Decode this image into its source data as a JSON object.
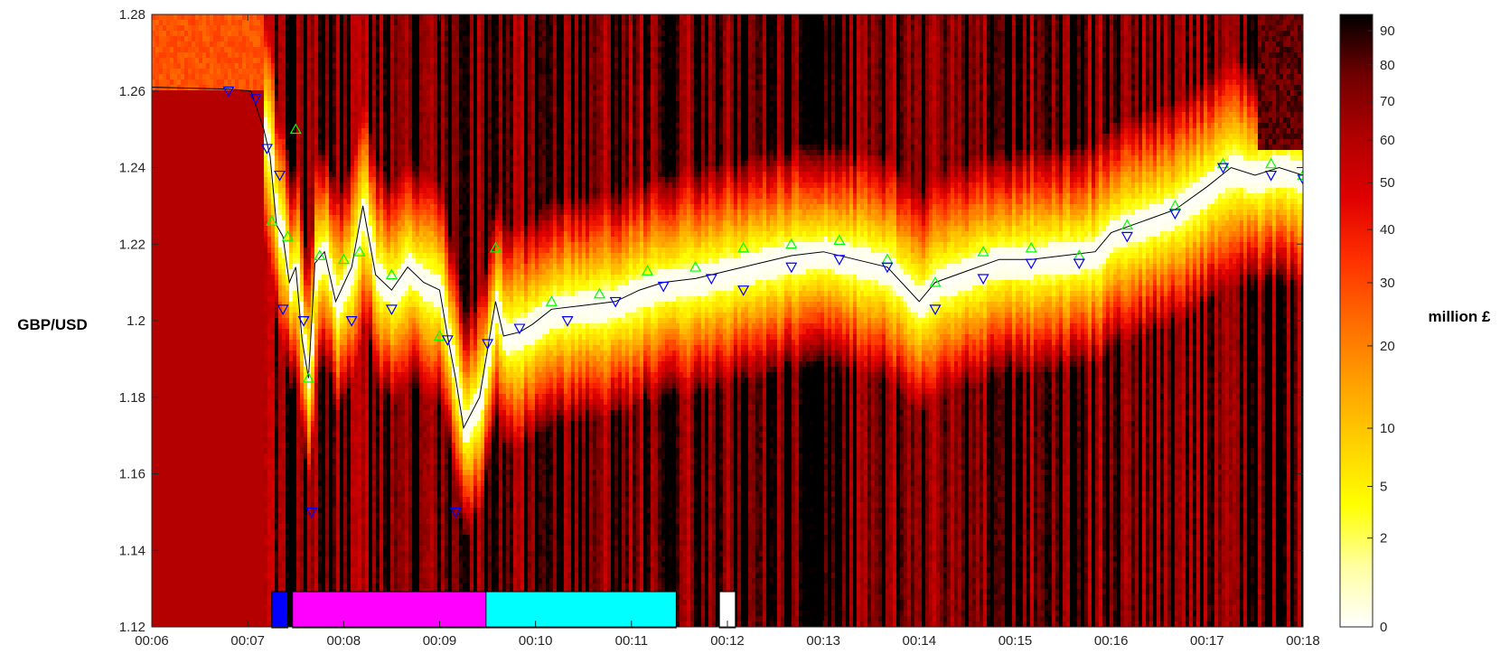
{
  "chart_data": {
    "type": "heatmap",
    "title": "",
    "xlabel": "",
    "ylabel": "GBP/USD",
    "colorbar_label": "million £",
    "x_ticks": [
      "00:06",
      "00:07",
      "00:08",
      "00:09",
      "00:10",
      "00:11",
      "00:12",
      "00:13",
      "00:14",
      "00:15",
      "00:16",
      "00:17",
      "00:18"
    ],
    "xlim": [
      "00:06",
      "00:18"
    ],
    "ylim": [
      1.12,
      1.28
    ],
    "y_ticks": [
      "1.12",
      "1.14",
      "1.16",
      "1.18",
      "1.2",
      "1.22",
      "1.24",
      "1.26",
      "1.28"
    ],
    "colorbar_ticks": [
      "0",
      "2",
      "5",
      "10",
      "20",
      "30",
      "40",
      "50",
      "60",
      "70",
      "80",
      "90"
    ],
    "colorbar_range": [
      0,
      95
    ],
    "colormap": [
      "#ffffff",
      "#ffffa0",
      "#ffff00",
      "#ffd000",
      "#ff9f00",
      "#ff6a00",
      "#ff3000",
      "#e00000",
      "#b00000",
      "#700000",
      "#000000"
    ],
    "price_series": {
      "name": "",
      "color": "#000000",
      "points": [
        [
          "00:06",
          1.261
        ],
        [
          "00:06:48",
          1.2605
        ],
        [
          "00:07:02",
          1.26
        ],
        [
          "00:07:10",
          1.25
        ],
        [
          "00:07:14",
          1.243
        ],
        [
          "00:07:18",
          1.225
        ],
        [
          "00:07:22",
          1.222
        ],
        [
          "00:07:26",
          1.21
        ],
        [
          "00:07:30",
          1.214
        ],
        [
          "00:07:34",
          1.195
        ],
        [
          "00:07:38",
          1.185
        ],
        [
          "00:07:42",
          1.215
        ],
        [
          "00:07:48",
          1.218
        ],
        [
          "00:07:55",
          1.205
        ],
        [
          "00:08:05",
          1.214
        ],
        [
          "00:08:12",
          1.23
        ],
        [
          "00:08:20",
          1.212
        ],
        [
          "00:08:30",
          1.208
        ],
        [
          "00:08:40",
          1.214
        ],
        [
          "00:08:50",
          1.21
        ],
        [
          "00:09:00",
          1.208
        ],
        [
          "00:09:05",
          1.196
        ],
        [
          "00:09:10",
          1.185
        ],
        [
          "00:09:15",
          1.172
        ],
        [
          "00:09:25",
          1.18
        ],
        [
          "00:09:35",
          1.205
        ],
        [
          "00:09:40",
          1.196
        ],
        [
          "00:09:50",
          1.197
        ],
        [
          "00:09:58",
          1.199
        ],
        [
          "00:10:10",
          1.203
        ],
        [
          "00:10:30",
          1.204
        ],
        [
          "00:10:50",
          1.205
        ],
        [
          "00:11:05",
          1.208
        ],
        [
          "00:11:20",
          1.21
        ],
        [
          "00:11:40",
          1.211
        ],
        [
          "00:12:00",
          1.213
        ],
        [
          "00:12:20",
          1.215
        ],
        [
          "00:12:40",
          1.217
        ],
        [
          "00:13:00",
          1.218
        ],
        [
          "00:13:20",
          1.216
        ],
        [
          "00:13:40",
          1.214
        ],
        [
          "00:14:00",
          1.205
        ],
        [
          "00:14:10",
          1.21
        ],
        [
          "00:14:30",
          1.213
        ],
        [
          "00:14:50",
          1.216
        ],
        [
          "00:15:10",
          1.216
        ],
        [
          "00:15:30",
          1.217
        ],
        [
          "00:15:50",
          1.218
        ],
        [
          "00:16:00",
          1.223
        ],
        [
          "00:16:20",
          1.226
        ],
        [
          "00:16:40",
          1.229
        ],
        [
          "00:17:00",
          1.235
        ],
        [
          "00:17:15",
          1.24
        ],
        [
          "00:17:30",
          1.238
        ],
        [
          "00:17:45",
          1.24
        ],
        [
          "00:18:00",
          1.238
        ]
      ]
    },
    "series": [
      {
        "name": "",
        "marker": "triangle-up",
        "color": "#00ff00",
        "points": [
          [
            "00:07:15",
            1.226
          ],
          [
            "00:07:25",
            1.222
          ],
          [
            "00:07:45",
            1.217
          ],
          [
            "00:08:00",
            1.216
          ],
          [
            "00:08:10",
            1.218
          ],
          [
            "00:07:30",
            1.25
          ],
          [
            "00:07:38",
            1.185
          ],
          [
            "00:08:30",
            1.212
          ],
          [
            "00:09:00",
            1.196
          ],
          [
            "00:09:35",
            1.219
          ],
          [
            "00:10:10",
            1.205
          ],
          [
            "00:10:40",
            1.207
          ],
          [
            "00:11:10",
            1.213
          ],
          [
            "00:11:40",
            1.214
          ],
          [
            "00:12:10",
            1.219
          ],
          [
            "00:12:40",
            1.22
          ],
          [
            "00:13:10",
            1.221
          ],
          [
            "00:13:40",
            1.216
          ],
          [
            "00:14:10",
            1.21
          ],
          [
            "00:14:40",
            1.218
          ],
          [
            "00:15:10",
            1.219
          ],
          [
            "00:15:40",
            1.217
          ],
          [
            "00:16:10",
            1.225
          ],
          [
            "00:16:40",
            1.23
          ],
          [
            "00:17:10",
            1.241
          ],
          [
            "00:17:40",
            1.241
          ],
          [
            "00:18:00",
            1.238
          ]
        ]
      },
      {
        "name": "",
        "marker": "triangle-down",
        "color": "#0000ff",
        "points": [
          [
            "00:06:48",
            1.26
          ],
          [
            "00:07:05",
            1.258
          ],
          [
            "00:07:12",
            1.245
          ],
          [
            "00:07:20",
            1.238
          ],
          [
            "00:07:22",
            1.203
          ],
          [
            "00:07:35",
            1.2
          ],
          [
            "00:07:40",
            1.15
          ],
          [
            "00:08:05",
            1.2
          ],
          [
            "00:08:30",
            1.203
          ],
          [
            "00:09:05",
            1.195
          ],
          [
            "00:09:10",
            1.15
          ],
          [
            "00:09:30",
            1.194
          ],
          [
            "00:09:50",
            1.198
          ],
          [
            "00:10:20",
            1.2
          ],
          [
            "00:10:50",
            1.205
          ],
          [
            "00:11:20",
            1.209
          ],
          [
            "00:11:50",
            1.211
          ],
          [
            "00:12:10",
            1.208
          ],
          [
            "00:12:40",
            1.214
          ],
          [
            "00:13:10",
            1.216
          ],
          [
            "00:13:40",
            1.214
          ],
          [
            "00:14:10",
            1.203
          ],
          [
            "00:14:40",
            1.211
          ],
          [
            "00:15:10",
            1.215
          ],
          [
            "00:15:40",
            1.215
          ],
          [
            "00:16:10",
            1.222
          ],
          [
            "00:16:40",
            1.228
          ],
          [
            "00:17:10",
            1.24
          ],
          [
            "00:17:40",
            1.238
          ],
          [
            "00:18:00",
            1.237
          ]
        ]
      }
    ],
    "phase_bars": [
      {
        "from": "00:07:15",
        "to": "00:07:25",
        "color": "#0000ff"
      },
      {
        "from": "00:07:28",
        "to": "00:09:29",
        "color": "#ff00ff"
      },
      {
        "from": "00:09:29",
        "to": "00:11:28",
        "color": "#00ffff"
      },
      {
        "from": "00:11:55",
        "to": "00:12:05",
        "color": "#ffffff"
      }
    ],
    "grid": false,
    "legend": "none"
  }
}
